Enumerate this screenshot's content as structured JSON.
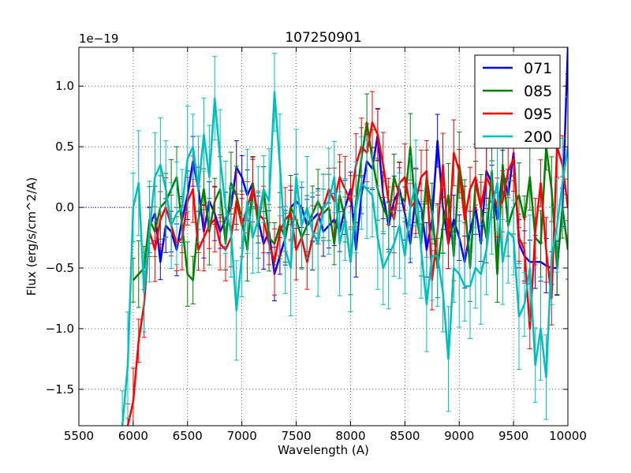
{
  "chart_data": {
    "type": "line",
    "title": "107250901",
    "xlabel": "Wavelength (A)",
    "ylabel": "Flux (erg/s/cm^2/A)",
    "y_offset_label": "1e−19",
    "xlim": [
      5500,
      10000
    ],
    "ylim": [
      -1.8,
      1.32
    ],
    "x_ticks": [
      5500,
      6000,
      6500,
      7000,
      7500,
      8000,
      8500,
      9000,
      9500,
      10000
    ],
    "x_tick_labels": [
      "5500",
      "6000",
      "6500",
      "7000",
      "7500",
      "8000",
      "8500",
      "9000",
      "9500",
      "10000"
    ],
    "y_ticks": [
      -1.5,
      -1.0,
      -0.5,
      0.0,
      0.5,
      1.0
    ],
    "y_tick_labels": [
      "−1.5",
      "−1.0",
      "−0.5",
      "0.0",
      "0.5",
      "1.0"
    ],
    "grid": true,
    "legend_position": "top-right",
    "baseline": {
      "x": [
        5500,
        6000
      ],
      "y": [
        0.0,
        0.0
      ],
      "color": "#0000ff",
      "style": "dotted"
    },
    "series": [
      {
        "name": "071",
        "color": "#0000ff",
        "x": [
          6150,
          6200,
          6250,
          6300,
          6350,
          6400,
          6450,
          6500,
          6550,
          6600,
          6650,
          6700,
          6750,
          6800,
          6850,
          6900,
          6950,
          7000,
          7050,
          7100,
          7150,
          7200,
          7250,
          7300,
          7350,
          7400,
          7450,
          7500,
          7550,
          7600,
          7650,
          7700,
          7750,
          7800,
          7850,
          7900,
          7950,
          8000,
          8050,
          8100,
          8150,
          8200,
          8250,
          8300,
          8350,
          8400,
          8450,
          8500,
          8550,
          8600,
          8650,
          8700,
          8750,
          8800,
          8850,
          8900,
          8950,
          9000,
          9050,
          9100,
          9150,
          9200,
          9250,
          9300,
          9350,
          9400,
          9450,
          9500,
          9550,
          9600,
          9650,
          9700,
          9750,
          9800,
          9850,
          9900,
          9950,
          10000
        ],
        "y": [
          -0.15,
          -0.05,
          -0.45,
          -0.15,
          -0.2,
          -0.35,
          -0.1,
          0.1,
          0.38,
          0.15,
          -0.2,
          0.05,
          -0.05,
          -0.2,
          -0.1,
          0.0,
          0.33,
          0.25,
          0.1,
          0.2,
          -0.1,
          -0.3,
          -0.2,
          -0.55,
          -0.4,
          -0.25,
          0.0,
          0.05,
          0.0,
          -0.15,
          -0.1,
          -0.05,
          -0.2,
          -0.15,
          -0.1,
          -0.2,
          0.0,
          0.15,
          -0.35,
          0.1,
          0.38,
          0.32,
          0.6,
          0.1,
          -0.15,
          0.05,
          0.15,
          -0.05,
          -0.3,
          0.1,
          0.0,
          -0.35,
          -0.1,
          0.55,
          0.0,
          -0.3,
          -0.1,
          -0.25,
          -0.45,
          -0.2,
          0.0,
          -0.3,
          0.3,
          0.2,
          -0.1,
          0.3,
          0.1,
          0.45,
          -0.3,
          -0.4,
          -0.45,
          -0.45,
          -0.45,
          -0.48,
          -0.5,
          -0.5,
          0.0,
          1.32
        ],
        "err": 0.18
      },
      {
        "name": "085",
        "color": "#008000",
        "x": [
          6000,
          6050,
          6100,
          6150,
          6200,
          6250,
          6300,
          6350,
          6400,
          6450,
          6500,
          6550,
          6600,
          6650,
          6700,
          6750,
          6800,
          6850,
          6900,
          6950,
          7000,
          7050,
          7100,
          7150,
          7200,
          7250,
          7300,
          7350,
          7400,
          7450,
          7500,
          7550,
          7600,
          7650,
          7700,
          7750,
          7800,
          7850,
          7900,
          7950,
          8000,
          8050,
          8100,
          8150,
          8200,
          8250,
          8300,
          8350,
          8400,
          8450,
          8500,
          8550,
          8600,
          8650,
          8700,
          8750,
          8800,
          8850,
          8900,
          8950,
          9000,
          9050,
          9100,
          9150,
          9200,
          9250,
          9300,
          9350,
          9400,
          9450,
          9500,
          9550,
          9600,
          9650,
          9700,
          9750,
          9800,
          9850,
          9900,
          9950,
          10000
        ],
        "y": [
          -0.6,
          -0.55,
          -0.5,
          -0.1,
          -0.2,
          0.0,
          0.05,
          0.15,
          0.25,
          -0.15,
          -0.55,
          -0.6,
          -0.1,
          0.15,
          -0.2,
          0.05,
          0.15,
          -0.3,
          0.2,
          0.1,
          -0.1,
          -0.35,
          0.2,
          -0.15,
          0.15,
          -0.25,
          -0.3,
          -0.15,
          -0.25,
          0.0,
          -0.1,
          -0.25,
          -0.15,
          -0.05,
          0.05,
          -0.05,
          0.0,
          -0.3,
          0.1,
          -0.1,
          -0.45,
          0.05,
          0.4,
          0.7,
          0.4,
          0.15,
          0.0,
          -0.1,
          0.25,
          0.1,
          0.05,
          0.5,
          -0.05,
          -0.3,
          0.25,
          -0.05,
          -0.5,
          -0.15,
          0.1,
          -0.4,
          0.35,
          0.05,
          -0.5,
          0.2,
          0.0,
          -0.25,
          0.3,
          -0.55,
          0.35,
          -0.15,
          0.0,
          0.1,
          -0.1,
          0.25,
          -0.25,
          -0.3,
          0.5,
          0.15,
          -0.5,
          0.0,
          -0.35
        ],
        "err": 0.22
      },
      {
        "name": "095",
        "color": "#ff0000",
        "x": [
          5950,
          6000,
          6050,
          6100,
          6150,
          6200,
          6250,
          6300,
          6350,
          6400,
          6450,
          6500,
          6550,
          6600,
          6650,
          6700,
          6750,
          6800,
          6850,
          6900,
          6950,
          7000,
          7050,
          7100,
          7150,
          7200,
          7250,
          7300,
          7350,
          7400,
          7450,
          7500,
          7550,
          7600,
          7650,
          7700,
          7750,
          7800,
          7850,
          7900,
          7950,
          8000,
          8050,
          8100,
          8150,
          8200,
          8250,
          8300,
          8350,
          8400,
          8450,
          8500,
          8550,
          8600,
          8650,
          8700,
          8750,
          8800,
          8850,
          8900,
          8950,
          9000,
          9050,
          9100,
          9150,
          9200,
          9250,
          9300,
          9350,
          9400,
          9450,
          9500,
          9550,
          9600,
          9650,
          9700,
          9750,
          9800,
          9850,
          9900,
          9950,
          10000
        ],
        "y": [
          -1.8,
          -1.6,
          -1.1,
          -0.8,
          -0.2,
          -0.35,
          -0.1,
          0.0,
          -0.15,
          -0.3,
          -0.25,
          0.05,
          0.15,
          -0.35,
          -0.25,
          -0.15,
          -0.1,
          -0.3,
          -0.35,
          -0.25,
          0.05,
          -0.15,
          0.0,
          0.15,
          -0.05,
          -0.1,
          -0.3,
          -0.45,
          -0.2,
          -0.1,
          -0.05,
          -0.35,
          -0.25,
          -0.45,
          -0.25,
          -0.1,
          0.0,
          0.15,
          0.05,
          0.25,
          0.15,
          0.05,
          0.35,
          0.5,
          0.45,
          0.7,
          0.6,
          0.35,
          0.05,
          -0.1,
          0.2,
          0.25,
          0.0,
          0.05,
          0.25,
          0.3,
          -0.6,
          -0.2,
          0.35,
          -0.3,
          0.45,
          0.3,
          -0.1,
          0.15,
          0.25,
          0.0,
          0.25,
          0.15,
          0.0,
          0.05,
          0.3,
          0.4,
          -0.25,
          -0.35,
          -1.0,
          -0.2,
          0.2,
          -0.35,
          -0.75,
          0.5,
          0.35,
          0.0
        ],
        "err": 0.22
      },
      {
        "name": "200",
        "color": "#00bfbf",
        "x": [
          5900,
          5950,
          6000,
          6050,
          6100,
          6150,
          6200,
          6250,
          6300,
          6350,
          6400,
          6450,
          6500,
          6550,
          6600,
          6650,
          6700,
          6750,
          6800,
          6850,
          6900,
          6950,
          7000,
          7050,
          7100,
          7150,
          7200,
          7250,
          7300,
          7350,
          7400,
          7450,
          7500,
          7550,
          7600,
          7650,
          7700,
          7750,
          7800,
          7850,
          7900,
          7950,
          8000,
          8050,
          8100,
          8150,
          8200,
          8250,
          8300,
          8350,
          8400,
          8450,
          8500,
          8550,
          8600,
          8650,
          8700,
          8750,
          8800,
          8850,
          8900,
          8950,
          9000,
          9050,
          9100,
          9150,
          9200,
          9250,
          9300,
          9350,
          9400,
          9450,
          9500,
          9550,
          9600,
          9650,
          9700,
          9750,
          9800,
          9850,
          9900,
          9950,
          10000
        ],
        "y": [
          -1.8,
          -1.3,
          0.0,
          0.2,
          -0.7,
          -0.2,
          0.25,
          0.35,
          0.15,
          -0.15,
          -0.05,
          0.0,
          0.4,
          0.5,
          0.15,
          0.6,
          0.25,
          0.9,
          0.4,
          0.0,
          -0.2,
          -0.85,
          -0.4,
          0.05,
          -0.25,
          -0.1,
          0.15,
          0.05,
          0.95,
          0.35,
          -0.35,
          -0.5,
          0.25,
          -0.15,
          0.0,
          -0.2,
          -0.3,
          0.0,
          0.05,
          0.25,
          -0.3,
          -0.1,
          -0.45,
          0.0,
          0.2,
          0.15,
          0.1,
          -0.25,
          -0.5,
          -0.4,
          -0.3,
          -0.15,
          -0.4,
          0.0,
          0.2,
          -0.35,
          -0.8,
          -0.4,
          -0.4,
          -0.7,
          -1.25,
          -0.5,
          -0.55,
          -0.65,
          -0.65,
          -0.5,
          -0.55,
          -0.35,
          0.0,
          0.2,
          -0.45,
          -0.2,
          -0.25,
          -0.9,
          -0.8,
          -0.5,
          -1.3,
          -1.0,
          -1.4,
          -0.4,
          -0.15,
          0.2,
          0.5
        ],
        "err": 0.35
      }
    ]
  }
}
